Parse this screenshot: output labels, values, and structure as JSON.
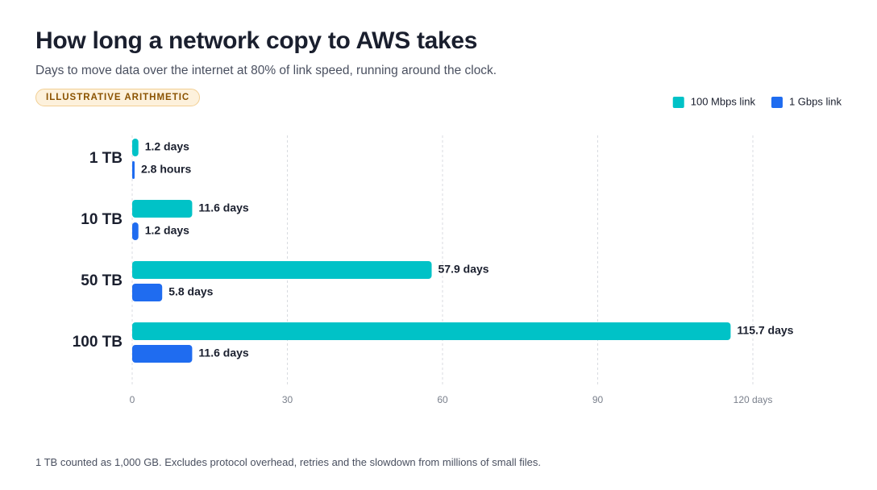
{
  "chart_data": {
    "type": "bar",
    "title": "How long a network copy to AWS takes",
    "subtitle": "Days to move data over the internet at 80% of link speed, running around the clock.",
    "badge": "ILLUSTRATIVE ARITHMETIC",
    "note": "1 TB counted as 1,000 GB. Excludes protocol overhead, retries and the slowdown from millions of small files.",
    "categories": [
      "1 TB",
      "10 TB",
      "50 TB",
      "100 TB"
    ],
    "series": [
      {
        "name": "100 Mbps link",
        "color": "#00c2c7",
        "values": [
          1.2,
          11.6,
          57.9,
          115.7
        ],
        "value_labels": [
          "1.2 days",
          "11.6 days",
          "57.9 days",
          "115.7 days"
        ]
      },
      {
        "name": "1 Gbps link",
        "color": "#1f6cf0",
        "values": [
          0.1167,
          1.2,
          5.8,
          11.6
        ],
        "value_labels": [
          "2.8 hours",
          "1.2 days",
          "5.8 days",
          "11.6 days"
        ]
      }
    ],
    "xlim": [
      0,
      120
    ],
    "xticks": [
      0,
      30,
      60,
      90,
      {
        "value": 120,
        "label": "120 days"
      }
    ],
    "grid": true,
    "legend": "top-right"
  }
}
